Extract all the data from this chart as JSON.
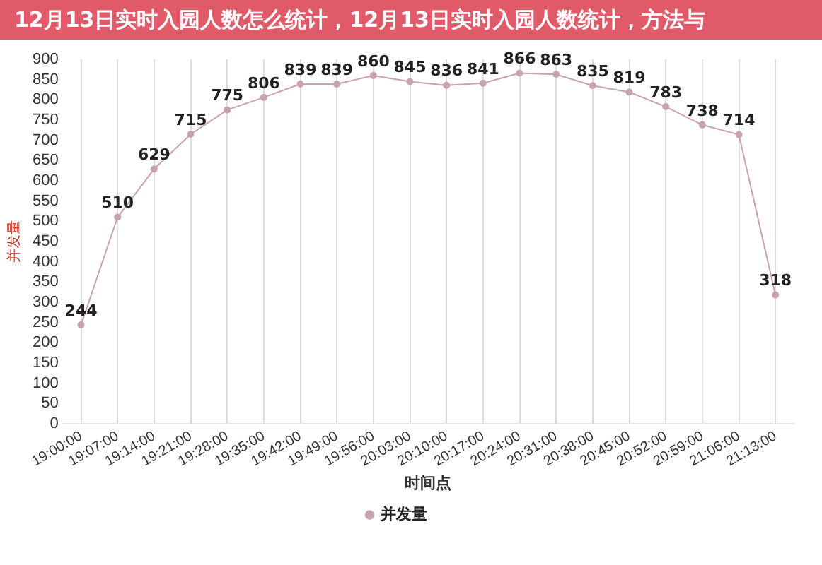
{
  "chart_data": {
    "type": "line",
    "title": "12月13日实时入园人数怎么统计，12月13日实时入园人数统计，方法与",
    "xlabel": "时间点",
    "ylabel": "并发量",
    "categories": [
      "19:00:00",
      "19:07:00",
      "19:14:00",
      "19:21:00",
      "19:28:00",
      "19:35:00",
      "19:42:00",
      "19:49:00",
      "19:56:00",
      "20:03:00",
      "20:10:00",
      "20:17:00",
      "20:24:00",
      "20:31:00",
      "20:38:00",
      "20:45:00",
      "20:52:00",
      "20:59:00",
      "21:06:00",
      "21:13:00"
    ],
    "series": [
      {
        "name": "并发量",
        "color": "#c9a3ab",
        "values": [
          244,
          510,
          629,
          715,
          775,
          806,
          839,
          839,
          860,
          845,
          836,
          841,
          866,
          863,
          835,
          819,
          783,
          738,
          714,
          318
        ]
      }
    ],
    "ylim": [
      0,
      900
    ],
    "yticks": [
      0,
      50,
      100,
      150,
      200,
      250,
      300,
      350,
      400,
      450,
      500,
      550,
      600,
      650,
      700,
      750,
      800,
      850,
      900
    ],
    "grid": "x",
    "legend": "bottom",
    "marker": "circle",
    "line_style": "solid",
    "data_labels": true
  }
}
